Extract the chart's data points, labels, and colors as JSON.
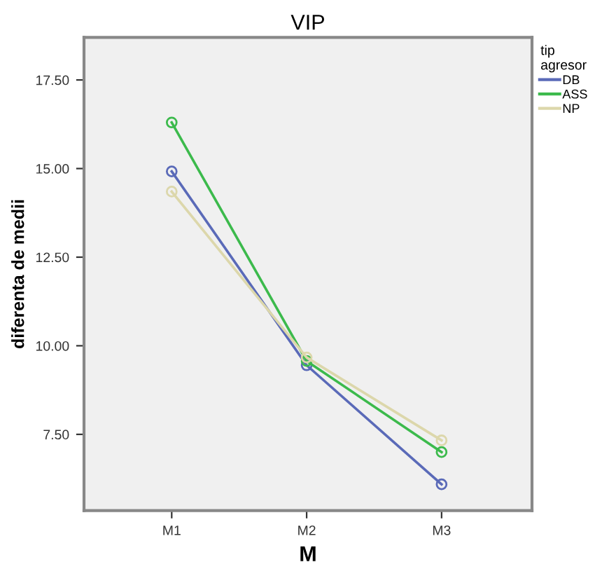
{
  "chart_data": {
    "type": "line",
    "title": "VIP",
    "xlabel": "M",
    "ylabel": "diferenta de medii",
    "legend_title": "tip\nagresor",
    "categories": [
      "M1",
      "M2",
      "M3"
    ],
    "series": [
      {
        "name": "DB",
        "color": "#5a6ab8",
        "values": [
          14.92,
          9.45,
          6.09
        ]
      },
      {
        "name": "ASS",
        "color": "#3cba4c",
        "values": [
          16.3,
          9.57,
          7.0
        ]
      },
      {
        "name": "NP",
        "color": "#dcd7ab",
        "values": [
          14.35,
          9.67,
          7.33
        ]
      }
    ],
    "ylim": [
      5.35,
      18.7
    ],
    "yticks": [
      {
        "value": 7.5,
        "label": "7.50"
      },
      {
        "value": 10,
        "label": "10.00"
      },
      {
        "value": 12.5,
        "label": "12.50"
      },
      {
        "value": 15,
        "label": "15.00"
      },
      {
        "value": 17.5,
        "label": "17.50"
      }
    ],
    "grid": false,
    "legend": "right",
    "marker": "circle",
    "line_style": "solid"
  }
}
